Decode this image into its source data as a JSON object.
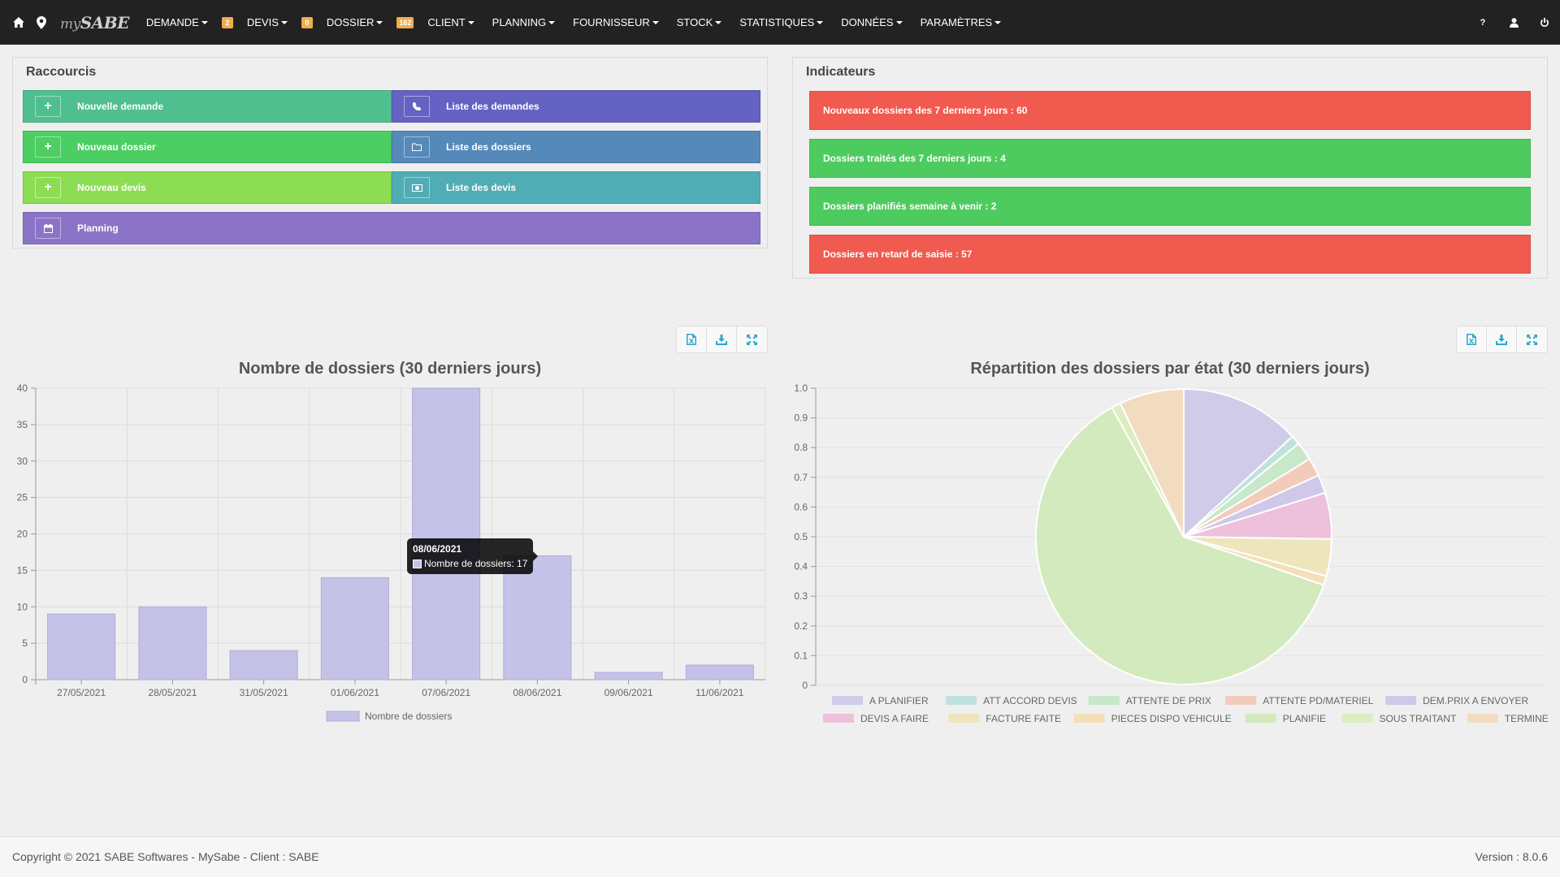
{
  "navbar": {
    "logo_prefix": "my",
    "logo_main": "SABE",
    "left_icons": [
      "home-icon",
      "map-marker-icon"
    ],
    "menu": [
      {
        "label": "DEMANDE",
        "badge": "2"
      },
      {
        "label": "DEVIS",
        "badge": "0"
      },
      {
        "label": "DOSSIER",
        "badge": "162"
      },
      {
        "label": "CLIENT",
        "badge": null
      },
      {
        "label": "PLANNING",
        "badge": null
      },
      {
        "label": "FOURNISSEUR",
        "badge": null
      },
      {
        "label": "STOCK",
        "badge": null
      },
      {
        "label": "STATISTIQUES",
        "badge": null
      },
      {
        "label": "DONNÉES",
        "badge": null
      },
      {
        "label": "PARAMÈTRES",
        "badge": null
      }
    ],
    "right": {
      "help": "?",
      "icons": [
        "user-icon",
        "power-icon"
      ]
    }
  },
  "shortcuts": {
    "title": "Raccourcis",
    "items": {
      "nouvelle_demande": {
        "label": "Nouvelle demande",
        "icon": "plus-icon",
        "color": "#50bf8f"
      },
      "liste_demandes": {
        "label": "Liste des demandes",
        "icon": "phone-icon",
        "color": "#6462c2"
      },
      "nouveau_dossier": {
        "label": "Nouveau dossier",
        "icon": "plus-icon",
        "color": "#4cce62"
      },
      "liste_dossiers": {
        "label": "Liste des dossiers",
        "icon": "folder-icon",
        "color": "#5589b9"
      },
      "nouveau_devis": {
        "label": "Nouveau devis",
        "icon": "plus-icon",
        "color": "#8ddd54"
      },
      "liste_devis": {
        "label": "Liste des devis",
        "icon": "money-icon",
        "color": "#51adb5"
      },
      "planning": {
        "label": "Planning",
        "icon": "calendar-icon",
        "color": "#8b74c8"
      }
    }
  },
  "indicators": {
    "title": "Indicateurs",
    "items": [
      {
        "label": "Nouveaux dossiers des 7 derniers jours : 60",
        "color": "#f05a4f"
      },
      {
        "label": "Dossiers traités des 7 derniers jours : 4",
        "color": "#4ecb5f"
      },
      {
        "label": "Dossiers planifiés semaine à venir : 2",
        "color": "#4ecb5f"
      },
      {
        "label": "Dossiers en retard de saisie : 57",
        "color": "#f05a4f"
      }
    ]
  },
  "toolbar_icons": [
    "export-excel-icon",
    "download-icon",
    "fullscreen-icon"
  ],
  "tooltip": {
    "title": "08/06/2021",
    "label": "Nombre de dossiers: 17"
  },
  "chart_data": [
    {
      "type": "bar",
      "title": "Nombre de dossiers (30 derniers jours)",
      "categories": [
        "27/05/2021",
        "28/05/2021",
        "31/05/2021",
        "01/06/2021",
        "07/06/2021",
        "08/06/2021",
        "09/06/2021",
        "11/06/2021"
      ],
      "series": [
        {
          "name": "Nombre de dossiers",
          "values": [
            9,
            10,
            4,
            14,
            40,
            17,
            1,
            2
          ],
          "color": "#c4c2e6"
        }
      ],
      "ylim": [
        0,
        40
      ],
      "yticks": [
        0,
        5,
        10,
        15,
        20,
        25,
        30,
        35,
        40
      ],
      "grid": true,
      "legend": "bottom"
    },
    {
      "type": "pie",
      "title": "Répartition des dossiers par état (30 derniers jours)",
      "yticks": [
        "0",
        "0.1",
        "0.2",
        "0.3",
        "0.4",
        "0.5",
        "0.6",
        "0.7",
        "0.8",
        "0.9",
        "1.0"
      ],
      "legend": "bottom",
      "slices": [
        {
          "name": "A PLANIFIER",
          "value": 13,
          "color": "#cfcbe9"
        },
        {
          "name": "ATT ACCORD DEVIS",
          "value": 1,
          "color": "#bfe3dc"
        },
        {
          "name": "ATTENTE DE PRIX",
          "value": 2,
          "color": "#c7e8c9"
        },
        {
          "name": "ATTENTE PD/MATERIEL",
          "value": 2,
          "color": "#f2cbbb"
        },
        {
          "name": "DEM.PRIX A ENVOYER",
          "value": 2,
          "color": "#cfc8ea"
        },
        {
          "name": "DEVIS A FAIRE",
          "value": 5,
          "color": "#edc0dc"
        },
        {
          "name": "FACTURE FAITE",
          "value": 4,
          "color": "#efe5bd"
        },
        {
          "name": "PIECES DISPO VEHICULE",
          "value": 1,
          "color": "#f5dfb8"
        },
        {
          "name": "PLANIFIE",
          "value": 61,
          "color": "#d2eabd"
        },
        {
          "name": "SOUS TRAITANT",
          "value": 1,
          "color": "#dcedc1"
        },
        {
          "name": "TERMINE",
          "value": 7,
          "color": "#f2dcc0"
        }
      ]
    }
  ],
  "footer": {
    "copyright": "Copyright © 2021 SABE Softwares - MySabe - Client : SABE",
    "version": "Version : 8.0.6"
  }
}
